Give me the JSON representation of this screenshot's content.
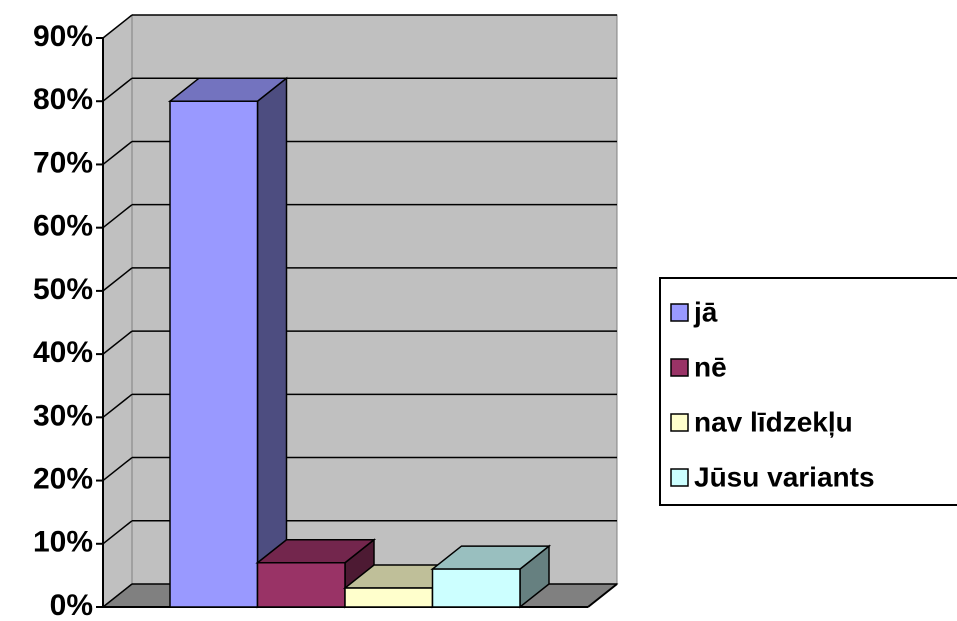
{
  "chart_data": {
    "type": "bar3d",
    "series": [
      {
        "name": "jā",
        "color": "#9999ff",
        "values": [
          80
        ]
      },
      {
        "name": "nē",
        "color": "#993366",
        "values": [
          7
        ]
      },
      {
        "name": "nav līdzekļu",
        "color": "#ffffcc",
        "values": [
          3
        ]
      },
      {
        "name": "Jūsu variants",
        "color": "#ccffff",
        "values": [
          6
        ]
      }
    ],
    "ylim": [
      0,
      90
    ],
    "yticks": [
      {
        "value": 0,
        "label": "0%"
      },
      {
        "value": 10,
        "label": "10%"
      },
      {
        "value": 20,
        "label": "20%"
      },
      {
        "value": 30,
        "label": "30%"
      },
      {
        "value": 40,
        "label": "40%"
      },
      {
        "value": 50,
        "label": "50%"
      },
      {
        "value": 60,
        "label": "60%"
      },
      {
        "value": 70,
        "label": "70%"
      },
      {
        "value": 80,
        "label": "80%"
      },
      {
        "value": 90,
        "label": "90%"
      }
    ],
    "grid": true,
    "legend": "right"
  }
}
